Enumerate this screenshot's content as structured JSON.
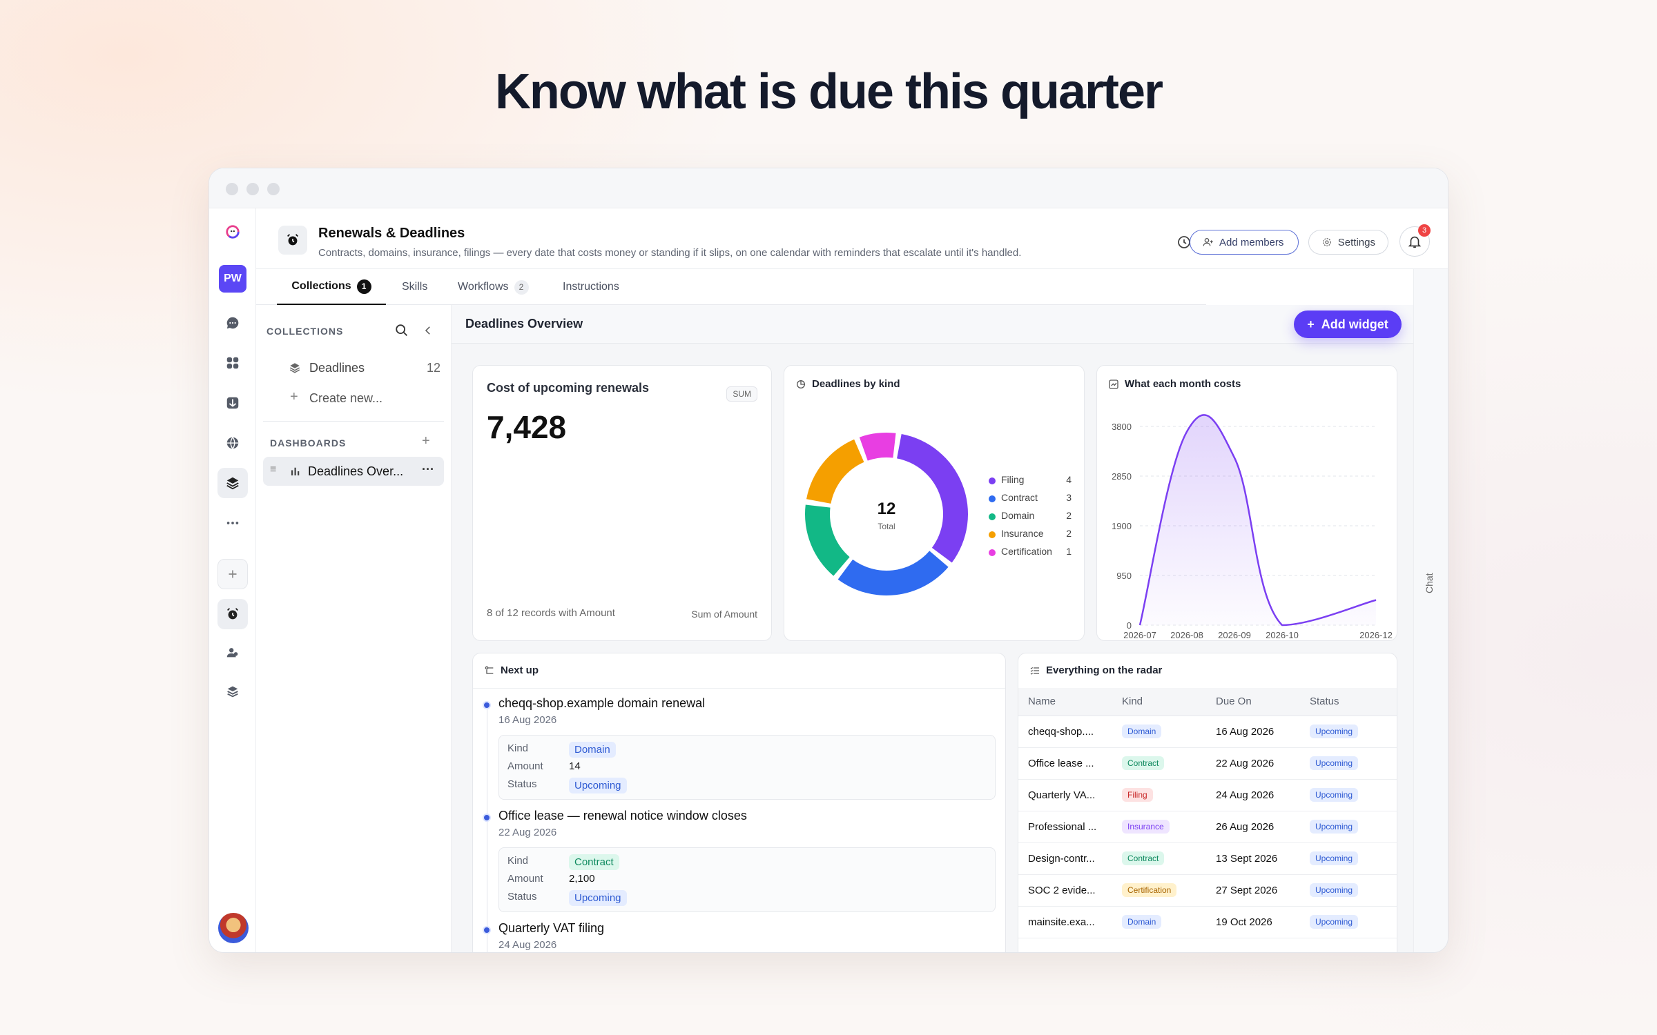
{
  "headline": "Know what is due this quarter",
  "header": {
    "title": "Renewals & Deadlines",
    "description": "Contracts, domains, insurance, filings — every date that costs money or standing if it slips, on one calendar with reminders that escalate until it's handled.",
    "add_members": "Add members",
    "settings": "Settings",
    "notif_count": "3"
  },
  "rail": {
    "workspace_initials": "PW"
  },
  "tabs": [
    {
      "label": "Collections",
      "count": "1"
    },
    {
      "label": "Skills"
    },
    {
      "label": "Workflows",
      "count": "2"
    },
    {
      "label": "Instructions"
    }
  ],
  "chat_label": "Chat",
  "collections": {
    "heading": "COLLECTIONS",
    "items": [
      {
        "label": "Deadlines",
        "count": "12"
      }
    ],
    "create_label": "Create new...",
    "dash_heading": "DASHBOARDS",
    "dash_item": "Deadlines Over..."
  },
  "dashboard": {
    "title": "Deadlines Overview",
    "add_widget": "Add widget"
  },
  "metric": {
    "title": "Cost of upcoming renewals",
    "tag": "SUM",
    "value": "7,428",
    "footer_left": "8 of 12 records with Amount",
    "footer_right": "Sum of Amount"
  },
  "donut": {
    "title": "Deadlines by kind",
    "total": "12",
    "total_label": "Total"
  },
  "linechart": {
    "title": "What each month costs"
  },
  "chart_data": [
    {
      "type": "pie",
      "title": "Deadlines by kind",
      "categories": [
        "Filing",
        "Contract",
        "Domain",
        "Insurance",
        "Certification"
      ],
      "values": [
        4,
        3,
        2,
        2,
        1
      ],
      "colors": [
        "#7b3ff2",
        "#2f6bf0",
        "#12b886",
        "#f59f00",
        "#e83ee2"
      ],
      "total": 12,
      "legend": "right"
    },
    {
      "type": "area",
      "title": "What each month costs",
      "x": [
        "2026-07",
        "2026-08",
        "2026-09",
        "2026-10",
        "2026-12"
      ],
      "y": [
        0,
        3700,
        3200,
        0,
        480
      ],
      "yticks": [
        0,
        950,
        1900,
        2850,
        3800
      ],
      "ylim": [
        0,
        3800
      ],
      "grid": true,
      "color": "#7b3ff2"
    }
  ],
  "next_up": {
    "title": "Next up",
    "kind_label": "Kind",
    "amount_label": "Amount",
    "status_label": "Status",
    "items": [
      {
        "title": "cheqq-shop.example domain renewal",
        "date": "16 Aug 2026",
        "kind": "Domain",
        "amount": "14",
        "status": "Upcoming"
      },
      {
        "title": "Office lease — renewal notice window closes",
        "date": "22 Aug 2026",
        "kind": "Contract",
        "amount": "2,100",
        "status": "Upcoming"
      },
      {
        "title": "Quarterly VAT filing",
        "date": "24 Aug 2026"
      }
    ]
  },
  "radar": {
    "title": "Everything on the radar",
    "columns": [
      "Name",
      "Kind",
      "Due On",
      "Status"
    ],
    "rows": [
      {
        "name": "cheqq-shop....",
        "kind": "Domain",
        "due": "16 Aug 2026",
        "status": "Upcoming"
      },
      {
        "name": "Office lease ...",
        "kind": "Contract",
        "due": "22 Aug 2026",
        "status": "Upcoming"
      },
      {
        "name": "Quarterly VA...",
        "kind": "Filing",
        "due": "24 Aug 2026",
        "status": "Upcoming"
      },
      {
        "name": "Professional ...",
        "kind": "Insurance",
        "due": "26 Aug 2026",
        "status": "Upcoming"
      },
      {
        "name": "Design-contr...",
        "kind": "Contract",
        "due": "13 Sept 2026",
        "status": "Upcoming"
      },
      {
        "name": "SOC 2 evide...",
        "kind": "Certification",
        "due": "27 Sept 2026",
        "status": "Upcoming"
      },
      {
        "name": "mainsite.exa...",
        "kind": "Domain",
        "due": "19 Oct 2026",
        "status": "Upcoming"
      }
    ]
  },
  "kind_colors": {
    "Domain": {
      "bg": "#e4ecff",
      "fg": "#2f5bd3"
    },
    "Contract": {
      "bg": "#dcf7ec",
      "fg": "#0f8a5f"
    },
    "Filing": {
      "bg": "#fde2e2",
      "fg": "#c92a2a"
    },
    "Insurance": {
      "bg": "#efe5ff",
      "fg": "#7b3ff2"
    },
    "Certification": {
      "bg": "#fff1cc",
      "fg": "#a86400"
    },
    "Upcoming": {
      "bg": "#e4ecff",
      "fg": "#2f5bd3"
    }
  }
}
